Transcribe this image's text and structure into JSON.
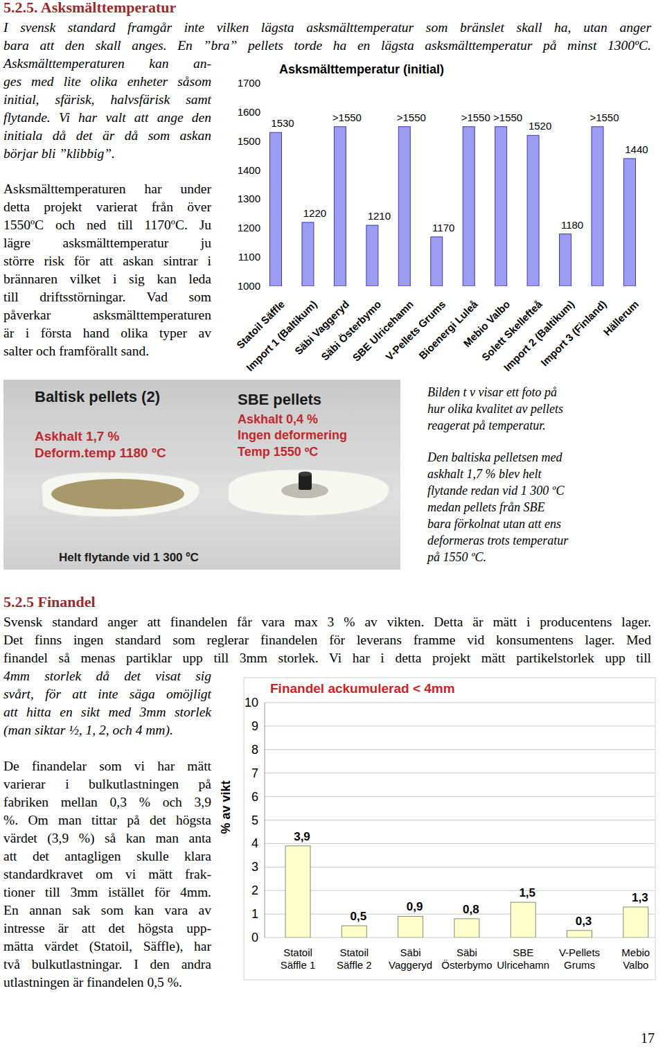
{
  "document": {
    "heading1": "5.2.5. Asksmälttemperatur",
    "intro": [
      "I svensk standard framgår inte vilken lägsta asksmälttemperatur som bränslet skall ha, utan anger",
      "bara att den skall anges. En ”bra” pellets torde ha en lägsta asksmälttemperatur på minst 1300ºC."
    ],
    "intro_column": [
      "Asksmälttemperaturen kan an-",
      "ges med lite olika enheter såsom",
      "initial, sfärisk, halvsfärisk samt",
      "flytande. Vi har valt att ange den",
      "initiala då det är då som askan",
      "börjar bli ”klibbig”."
    ],
    "para1": [
      "Asksmälttemperaturen har under",
      "detta projekt varierat från över",
      "1550ºC och ned till 1170ºC. Ju",
      "lägre asksmälttemperatur ju",
      "större risk för att askan sintrar i",
      "brännaren vilket i sig kan leda",
      "till driftsstörningar. Vad som",
      "påverkar asksmälttemperaturen",
      "är i första hand olika typer av",
      "salter och framförallt sand."
    ],
    "photo": {
      "left": [
        "Baltisk pellets (2)",
        "Askhalt 1,7 %",
        "Deform.temp 1180 ºC"
      ],
      "left_bottom": "Helt flytande vid 1 300 ºC",
      "right": [
        "SBE pellets",
        "Askhalt 0,4 %",
        "Ingen deformering",
        "Temp 1550 ºC"
      ]
    },
    "caption": [
      [
        "Bilden t v visar ett foto på",
        "hur olika kvalitet av pellets",
        "reagerat på temperatur."
      ],
      [
        "Den baltiska pelletsen med",
        "askhalt 1,7 % blev helt",
        "flytande redan vid 1 300 ºC",
        "medan pellets från SBE",
        "bara förkolnat utan att ens",
        "deformeras trots temperatur",
        "på 1550 ºC."
      ]
    ],
    "heading2": "5.2.5 Finandel",
    "para2": [
      "Svensk standard anger att finandelen får vara max 3 % av vikten. Detta är mätt i producentens lager.",
      "Det finns ingen standard som reglerar finandelen för leverans framme vid konsumentens lager. Med",
      "finandel så menas partiklar upp till 3mm storlek. Vi har i detta projekt mätt partikelstorlek upp till"
    ],
    "para2_column": [
      "4mm storlek då det visat sig",
      "svårt, för att inte säga omöjligt",
      "att hitta en sikt med 3mm storlek",
      "(man siktar ½, 1, 2, och 4 mm)."
    ],
    "para3": [
      "De finandelar som vi har mätt",
      "varierar i bulkutlastningen på",
      "fabriken mellan 0,3 % och 3,9",
      "%. Om man tittar på det högsta",
      "värdet (3,9 %) så kan man anta",
      "att det antagligen skulle klara",
      "standardkravet om vi mätt frak-",
      "tioner till 3mm istället för 4mm.",
      "En annan sak som kan vara av",
      "intresse är att det högsta upp-",
      "mätta värdet (Statoil, Säffle), har",
      "två bulkutlastningar. I den andra",
      "utlastningen är finandelen 0,5 %."
    ],
    "page_number": "17"
  },
  "chart_data": [
    {
      "type": "bar",
      "title": "Asksmälttemperatur (initial)",
      "categories": [
        "Statoil Säffle",
        "Import 1 (Baltikum)",
        "Säbi Vaggeryd",
        "Säbi Österbymo",
        "SBE Ulricehamn",
        "V-Pellets Grums",
        "Bioenergi Luleå",
        "Mebio Valbo",
        "Solett Skellefteå",
        "Import 2 (Baltikum)",
        "Import 3 (Finland)",
        "Hällerum"
      ],
      "values": [
        1530,
        1220,
        1550,
        1210,
        1550,
        1170,
        1550,
        1550,
        1520,
        1180,
        1550,
        1440
      ],
      "value_labels": [
        "1530",
        "1220",
        ">1550",
        "1210",
        ">1550",
        "1170",
        ">1550",
        ">1550",
        "1520",
        "1180",
        ">1550",
        "1440"
      ],
      "color": "#9c9cf2",
      "ylim": [
        1000,
        1700
      ],
      "yticks": [
        1000,
        1100,
        1200,
        1300,
        1400,
        1500,
        1600,
        1700
      ],
      "grid": false,
      "data_labels": true
    },
    {
      "type": "bar",
      "title": "Finandel ackumulerad < 4mm",
      "y_label": "% av vikt",
      "categories": [
        "Statoil Säffle 1",
        "Statoil Säffle 2",
        "Säbi Vaggeryd",
        "Säbi Österbymo",
        "SBE Ulricehamn",
        "V-Pellets Grums",
        "Mebio Valbo"
      ],
      "values": [
        3.9,
        0.5,
        0.9,
        0.8,
        1.5,
        0.3,
        1.3
      ],
      "value_labels": [
        "3,9",
        "0,5",
        "0,9",
        "0,8",
        "1,5",
        "0,3",
        "1,3"
      ],
      "color": "#ffffcc",
      "ylim": [
        0,
        10
      ],
      "yticks": [
        0,
        1,
        2,
        3,
        4,
        5,
        6,
        7,
        8,
        9,
        10
      ],
      "grid": true,
      "data_labels": true
    }
  ]
}
